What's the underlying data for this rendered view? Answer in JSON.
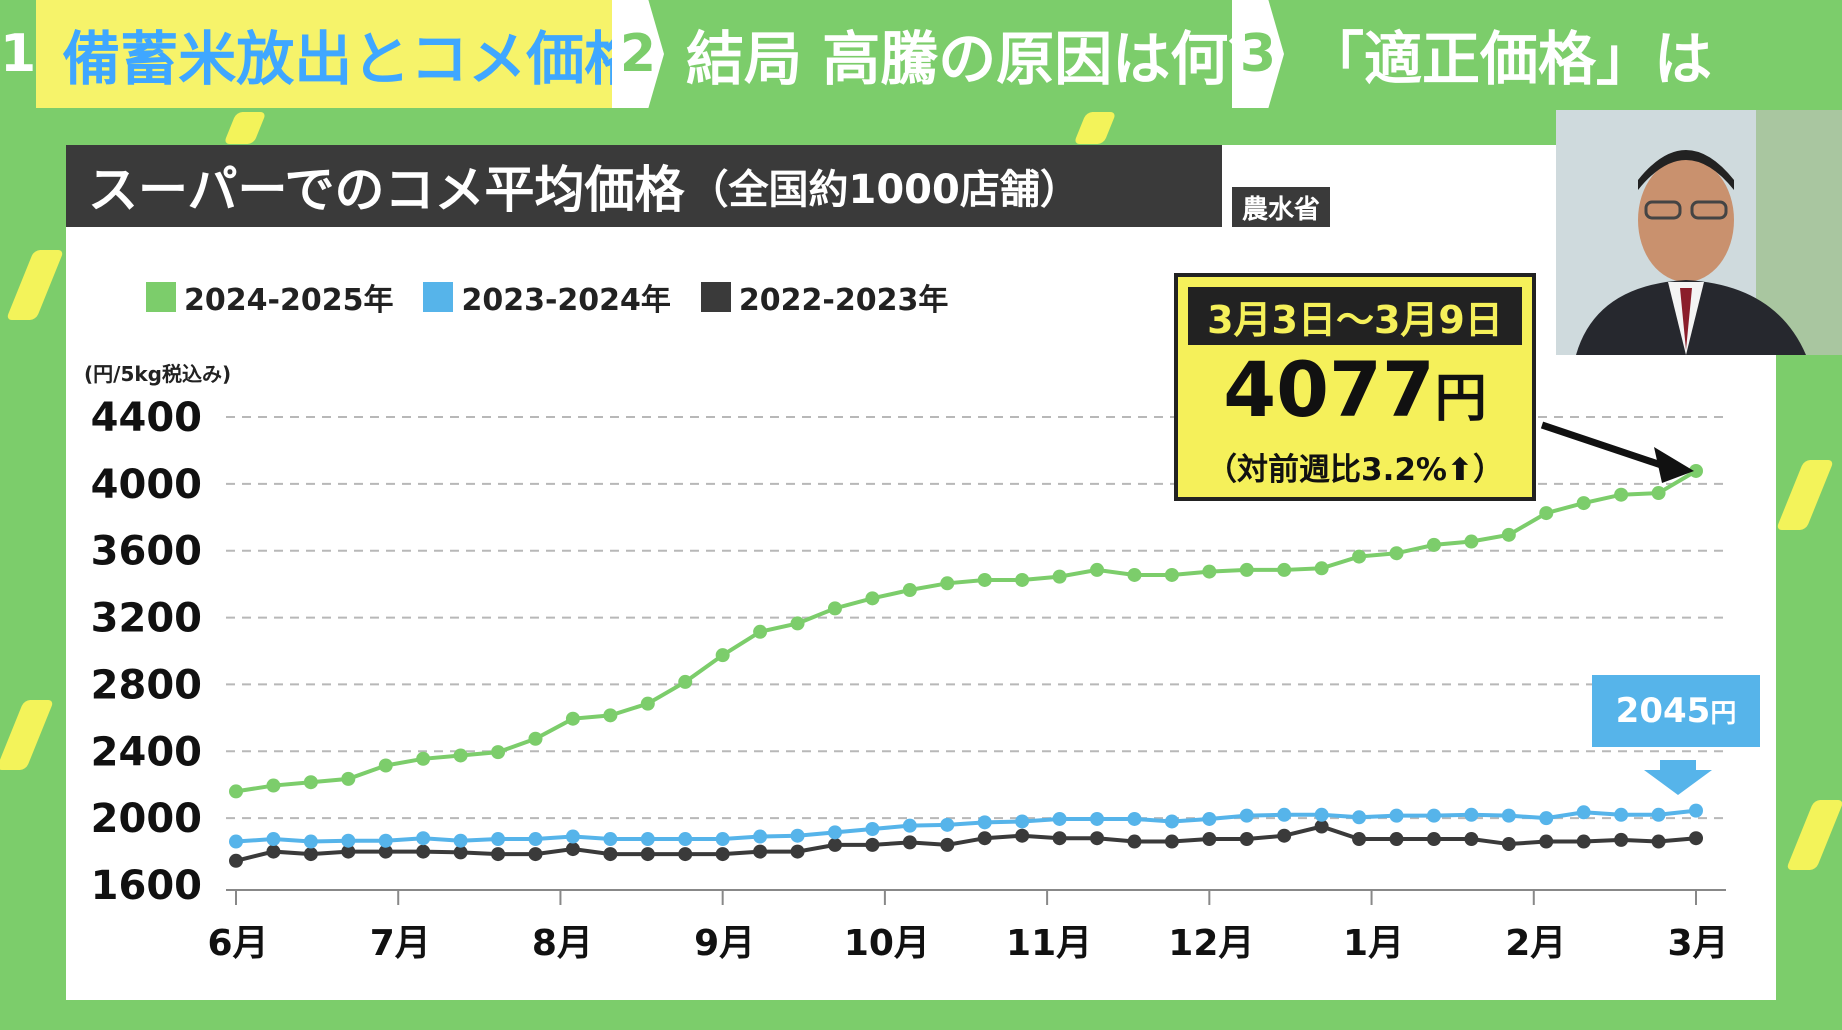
{
  "header": {
    "tabs": [
      {
        "num": "1",
        "label": "備蓄米放出とコメ価格"
      },
      {
        "num": "2",
        "label": "結局 高騰の原因は何？"
      },
      {
        "num": "3",
        "label": "「適正価格」は"
      }
    ]
  },
  "chart_title": "スーパーでのコメ平均価格",
  "chart_subtitle": "（全国約1000店舗）",
  "source": "農水省",
  "colors": {
    "series_2024": "#7ccd6b",
    "series_2023": "#56b4ea",
    "series_2022": "#3a3a3a"
  },
  "callout": {
    "date": "3月3日～3月9日",
    "value": "4077",
    "unit": "円",
    "change": "（対前週比3.2%⬆）"
  },
  "blue_label": {
    "value": "2045",
    "unit": "円"
  },
  "chart_data": {
    "type": "line",
    "ylabel": "(円/5kg税込み)",
    "ylim": [
      1600,
      4400
    ],
    "yticks": [
      1600,
      2000,
      2400,
      2800,
      3200,
      3600,
      4000,
      4400
    ],
    "xlabels": [
      "6月",
      "7月",
      "8月",
      "9月",
      "10月",
      "11月",
      "12月",
      "1月",
      "2月",
      "3月"
    ],
    "legend_position": "top-left",
    "grid": true,
    "series": [
      {
        "name": "2024-2025年",
        "values": [
          2160,
          2195,
          2215,
          2235,
          2315,
          2355,
          2375,
          2395,
          2475,
          2595,
          2615,
          2685,
          2815,
          2975,
          3115,
          3165,
          3255,
          3315,
          3365,
          3405,
          3425,
          3425,
          3445,
          3485,
          3455,
          3455,
          3475,
          3485,
          3485,
          3495,
          3565,
          3585,
          3635,
          3655,
          3695,
          3825,
          3885,
          3935,
          3945,
          4077
        ]
      },
      {
        "name": "2023-2024年",
        "values": [
          1860,
          1875,
          1860,
          1865,
          1865,
          1880,
          1865,
          1875,
          1875,
          1890,
          1875,
          1875,
          1875,
          1875,
          1890,
          1895,
          1915,
          1935,
          1955,
          1960,
          1975,
          1980,
          1995,
          1995,
          1995,
          1980,
          1995,
          2015,
          2020,
          2020,
          2005,
          2015,
          2015,
          2020,
          2015,
          2000,
          2035,
          2020,
          2020,
          2045
        ]
      },
      {
        "name": "2022-2023年",
        "values": [
          1745,
          1800,
          1785,
          1800,
          1800,
          1800,
          1795,
          1785,
          1785,
          1815,
          1785,
          1785,
          1785,
          1785,
          1800,
          1800,
          1840,
          1840,
          1855,
          1840,
          1880,
          1895,
          1880,
          1880,
          1860,
          1860,
          1875,
          1875,
          1895,
          1950,
          1875,
          1875,
          1875,
          1875,
          1845,
          1860,
          1860,
          1870,
          1860,
          1880
        ]
      }
    ]
  }
}
